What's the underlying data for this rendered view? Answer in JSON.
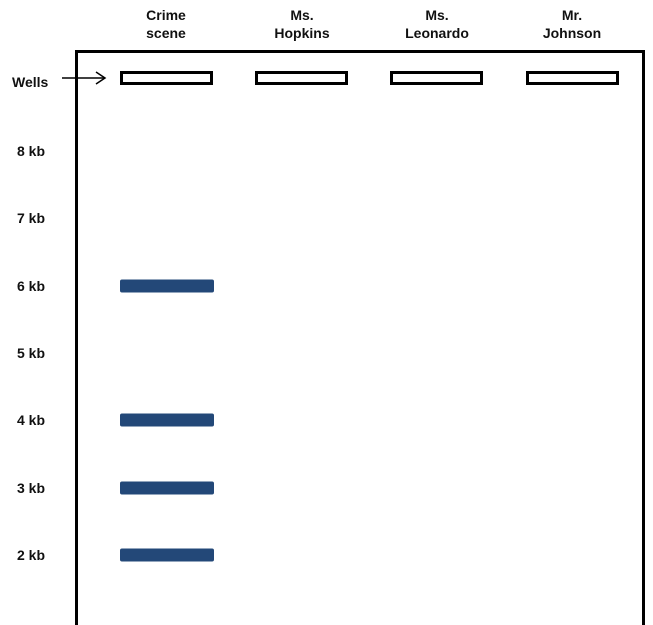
{
  "lanes": [
    {
      "line1": "Crime",
      "line2": "scene"
    },
    {
      "line1": "Ms.",
      "line2": "Hopkins"
    },
    {
      "line1": "Ms.",
      "line2": "Leonardo"
    },
    {
      "line1": "Mr.",
      "line2": "Johnson"
    }
  ],
  "wells_label": "Wells",
  "size_labels": [
    "8 kb",
    "7 kb",
    "6 kb",
    "5 kb",
    "4 kb",
    "3 kb",
    "2 kb"
  ],
  "band_color": "#234878",
  "bands": [
    {
      "lane": "Crime scene",
      "size_kb": 6
    },
    {
      "lane": "Crime scene",
      "size_kb": 4
    },
    {
      "lane": "Crime scene",
      "size_kb": 3
    },
    {
      "lane": "Crime scene",
      "size_kb": 2
    }
  ]
}
